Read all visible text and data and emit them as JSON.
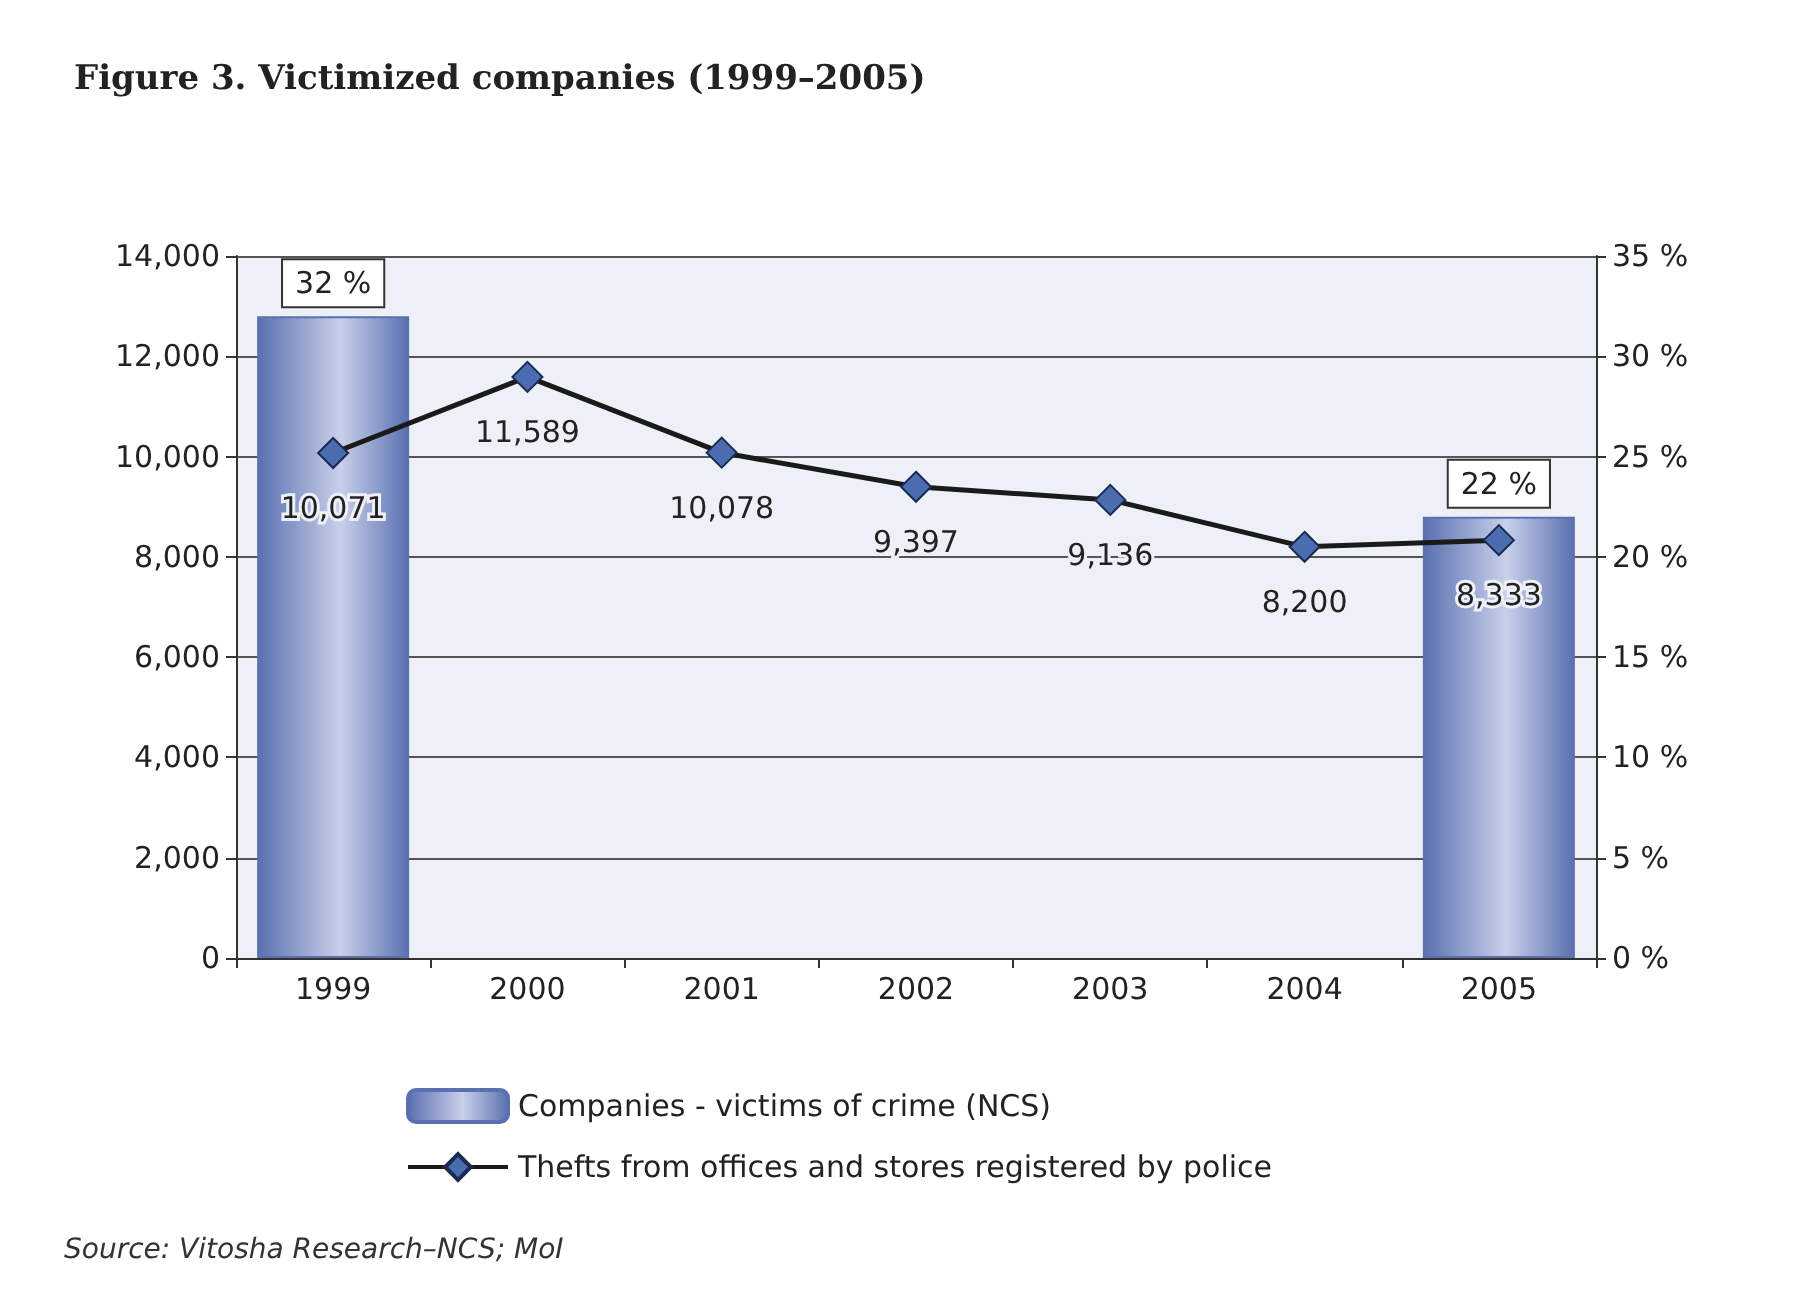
{
  "chart_data": {
    "type": "bar",
    "title": "Figure 3. Victimized companies (1999–2005)",
    "categories": [
      "1999",
      "2000",
      "2001",
      "2002",
      "2003",
      "2004",
      "2005"
    ],
    "series": [
      {
        "name": "Companies - victims of crime (NCS)",
        "axis": "y2",
        "color": "#5a70b0",
        "values": [
          32,
          null,
          null,
          null,
          null,
          null,
          22
        ],
        "value_labels": [
          "32 %",
          null,
          null,
          null,
          null,
          null,
          "22 %"
        ]
      },
      {
        "name": "Thefts from offices and stores registered by police",
        "type": "line",
        "color": "#1a1a1a",
        "marker": "diamond",
        "values": [
          10071,
          11589,
          10078,
          9397,
          9136,
          8200,
          8333
        ],
        "value_labels": [
          "10,071",
          "11,589",
          "10,078",
          "9,397",
          "9,136",
          "8,200",
          "8,333"
        ]
      }
    ],
    "ylim": [
      0,
      14000
    ],
    "yticks": [
      {
        "value": 0,
        "label": "0"
      },
      {
        "value": 2000,
        "label": "2,000"
      },
      {
        "value": 4000,
        "label": "4,000"
      },
      {
        "value": 6000,
        "label": "6,000"
      },
      {
        "value": 8000,
        "label": "8,000"
      },
      {
        "value": 10000,
        "label": "10,000"
      },
      {
        "value": 12000,
        "label": "12,000"
      },
      {
        "value": 14000,
        "label": "14,000"
      }
    ],
    "y2lim": [
      0,
      35
    ],
    "y2ticks": [
      {
        "value": 0,
        "label": "0 %"
      },
      {
        "value": 5,
        "label": "5 %"
      },
      {
        "value": 10,
        "label": "10 %"
      },
      {
        "value": 15,
        "label": "15 %"
      },
      {
        "value": 20,
        "label": "20 %"
      },
      {
        "value": 25,
        "label": "25 %"
      },
      {
        "value": 30,
        "label": "30 %"
      },
      {
        "value": 35,
        "label": "35 %"
      }
    ],
    "grid": "y",
    "legend": "bottom",
    "annotations": [
      "Source: Vitosha Research–NCS; MoI"
    ]
  }
}
